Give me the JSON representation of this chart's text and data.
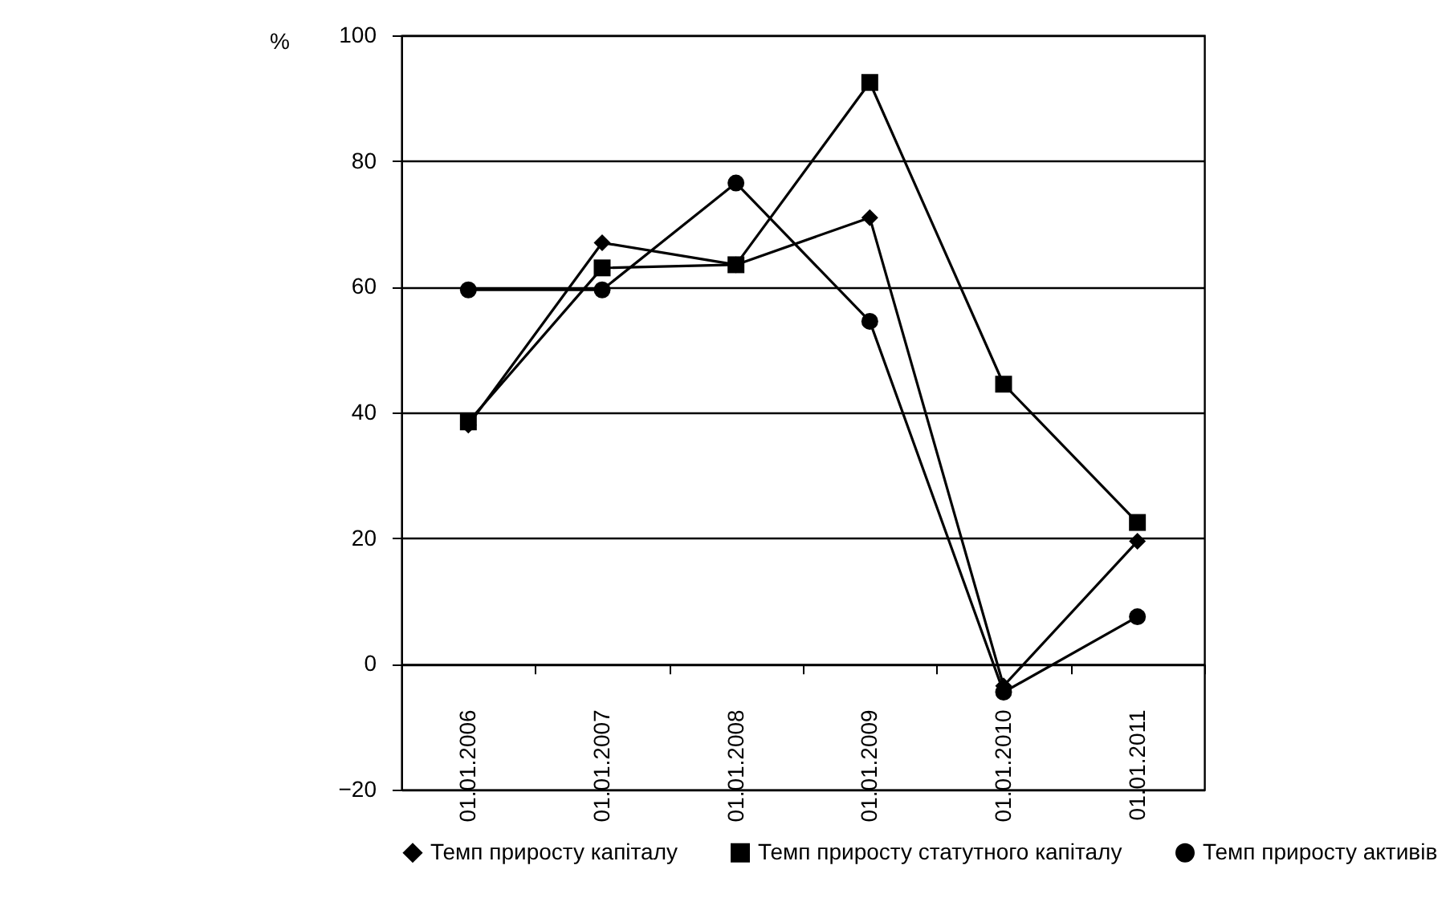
{
  "chart_data": {
    "type": "line",
    "ylabel": "%",
    "categories": [
      "01.01.2006",
      "01.01.2007",
      "01.01.2008",
      "01.01.2009",
      "01.01.2010",
      "01.01.2011"
    ],
    "series": [
      {
        "name": "Темп приросту капіталу",
        "color": "#000000",
        "marker": "diamond",
        "values": [
          38,
          67,
          63.5,
          71,
          -3.5,
          19.5
        ]
      },
      {
        "name": "Темп приросту статутного капіталу",
        "color": "#000000",
        "marker": "square",
        "values": [
          38.5,
          63,
          63.5,
          92.5,
          44.5,
          22.5
        ]
      },
      {
        "name": "Темп приросту активів",
        "color": "#000000",
        "marker": "circle",
        "values": [
          59.5,
          59.5,
          76.5,
          54.5,
          -4.5,
          7.5
        ]
      }
    ],
    "ylim": [
      -20,
      100
    ],
    "yticks": [
      -20,
      0,
      20,
      40,
      60,
      80,
      100
    ],
    "grid": "y",
    "legend": "bottom"
  }
}
